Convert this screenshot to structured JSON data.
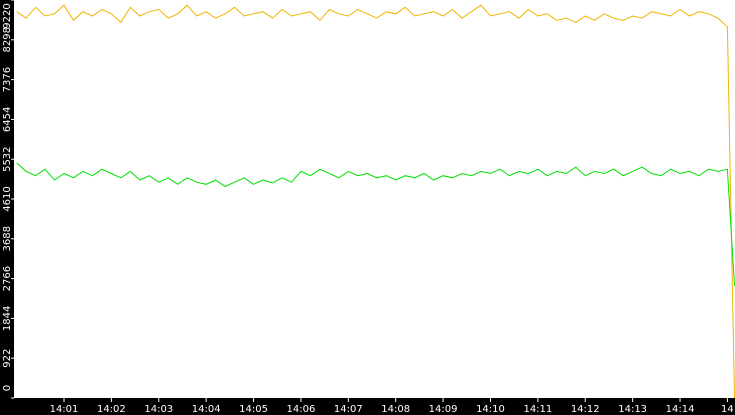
{
  "chart_data": {
    "type": "line",
    "x": [
      0,
      0.2,
      0.4,
      0.6,
      0.8,
      1,
      1.2,
      1.4,
      1.6,
      1.8,
      2,
      2.2,
      2.4,
      2.6,
      2.8,
      3,
      3.2,
      3.4,
      3.6,
      3.8,
      4,
      4.2,
      4.4,
      4.6,
      4.8,
      5,
      5.2,
      5.4,
      5.6,
      5.8,
      6,
      6.2,
      6.4,
      6.6,
      6.8,
      7,
      7.2,
      7.4,
      7.6,
      7.8,
      8,
      8.2,
      8.4,
      8.6,
      8.8,
      9,
      9.2,
      9.4,
      9.6,
      9.8,
      10,
      10.2,
      10.4,
      10.6,
      10.8,
      11,
      11.2,
      11.4,
      11.6,
      11.8,
      12,
      12.2,
      12.4,
      12.6,
      12.8,
      13,
      13.2,
      13.4,
      13.6,
      13.8,
      14,
      14.2,
      14.4,
      14.6,
      14.8,
      15,
      15.15
    ],
    "series": [
      {
        "color": "#f0b400",
        "values": [
          8950,
          8800,
          9050,
          8850,
          8900,
          9100,
          8750,
          8950,
          8850,
          9000,
          8900,
          8700,
          9050,
          8850,
          8950,
          9000,
          8800,
          8900,
          9100,
          8850,
          8950,
          8800,
          8900,
          9050,
          8850,
          8900,
          8950,
          8800,
          9000,
          8850,
          8900,
          8950,
          8750,
          9000,
          8900,
          8850,
          9000,
          8900,
          8800,
          8950,
          8900,
          9050,
          8850,
          8900,
          8950,
          8850,
          9000,
          8800,
          8950,
          9100,
          8850,
          8900,
          8950,
          8800,
          9000,
          8850,
          8900,
          8750,
          8800,
          8700,
          8850,
          8750,
          8900,
          8800,
          8750,
          8850,
          8800,
          8950,
          8900,
          8850,
          9000,
          8850,
          8950,
          8900,
          8800,
          8600,
          0
        ]
      },
      {
        "color": "#00e000",
        "values": [
          5450,
          5250,
          5150,
          5300,
          5050,
          5200,
          5100,
          5250,
          5150,
          5300,
          5200,
          5100,
          5250,
          5050,
          5150,
          5000,
          5100,
          4950,
          5100,
          5000,
          4950,
          5050,
          4900,
          5000,
          5100,
          4950,
          5050,
          4980,
          5100,
          5000,
          5250,
          5150,
          5300,
          5200,
          5100,
          5250,
          5150,
          5200,
          5100,
          5150,
          5050,
          5150,
          5100,
          5200,
          5050,
          5150,
          5100,
          5200,
          5150,
          5250,
          5200,
          5300,
          5150,
          5250,
          5200,
          5300,
          5150,
          5250,
          5200,
          5350,
          5150,
          5250,
          5200,
          5300,
          5150,
          5250,
          5350,
          5200,
          5150,
          5300,
          5200,
          5250,
          5150,
          5300,
          5250,
          5300,
          2600
        ]
      }
    ],
    "xlim": [
      -0.055,
      15.16
    ],
    "xticks": [
      {
        "value": 1,
        "label": "14:01"
      },
      {
        "value": 2,
        "label": "14:02"
      },
      {
        "value": 3,
        "label": "14:03"
      },
      {
        "value": 4,
        "label": "14:04"
      },
      {
        "value": 5,
        "label": "14:05"
      },
      {
        "value": 6,
        "label": "14:06"
      },
      {
        "value": 7,
        "label": "14:07"
      },
      {
        "value": 8,
        "label": "14:08"
      },
      {
        "value": 9,
        "label": "14:09"
      },
      {
        "value": 10,
        "label": "14:10"
      },
      {
        "value": 11,
        "label": "14:11"
      },
      {
        "value": 12,
        "label": "14:12"
      },
      {
        "value": 13,
        "label": "14:13"
      },
      {
        "value": 14,
        "label": "14:14"
      },
      {
        "value": 15,
        "label": "14"
      }
    ],
    "ylim": [
      0,
      9220
    ],
    "yticks": [
      0,
      922,
      1844,
      2766,
      3688,
      4610,
      5532,
      6454,
      7376,
      8298,
      9220
    ]
  }
}
